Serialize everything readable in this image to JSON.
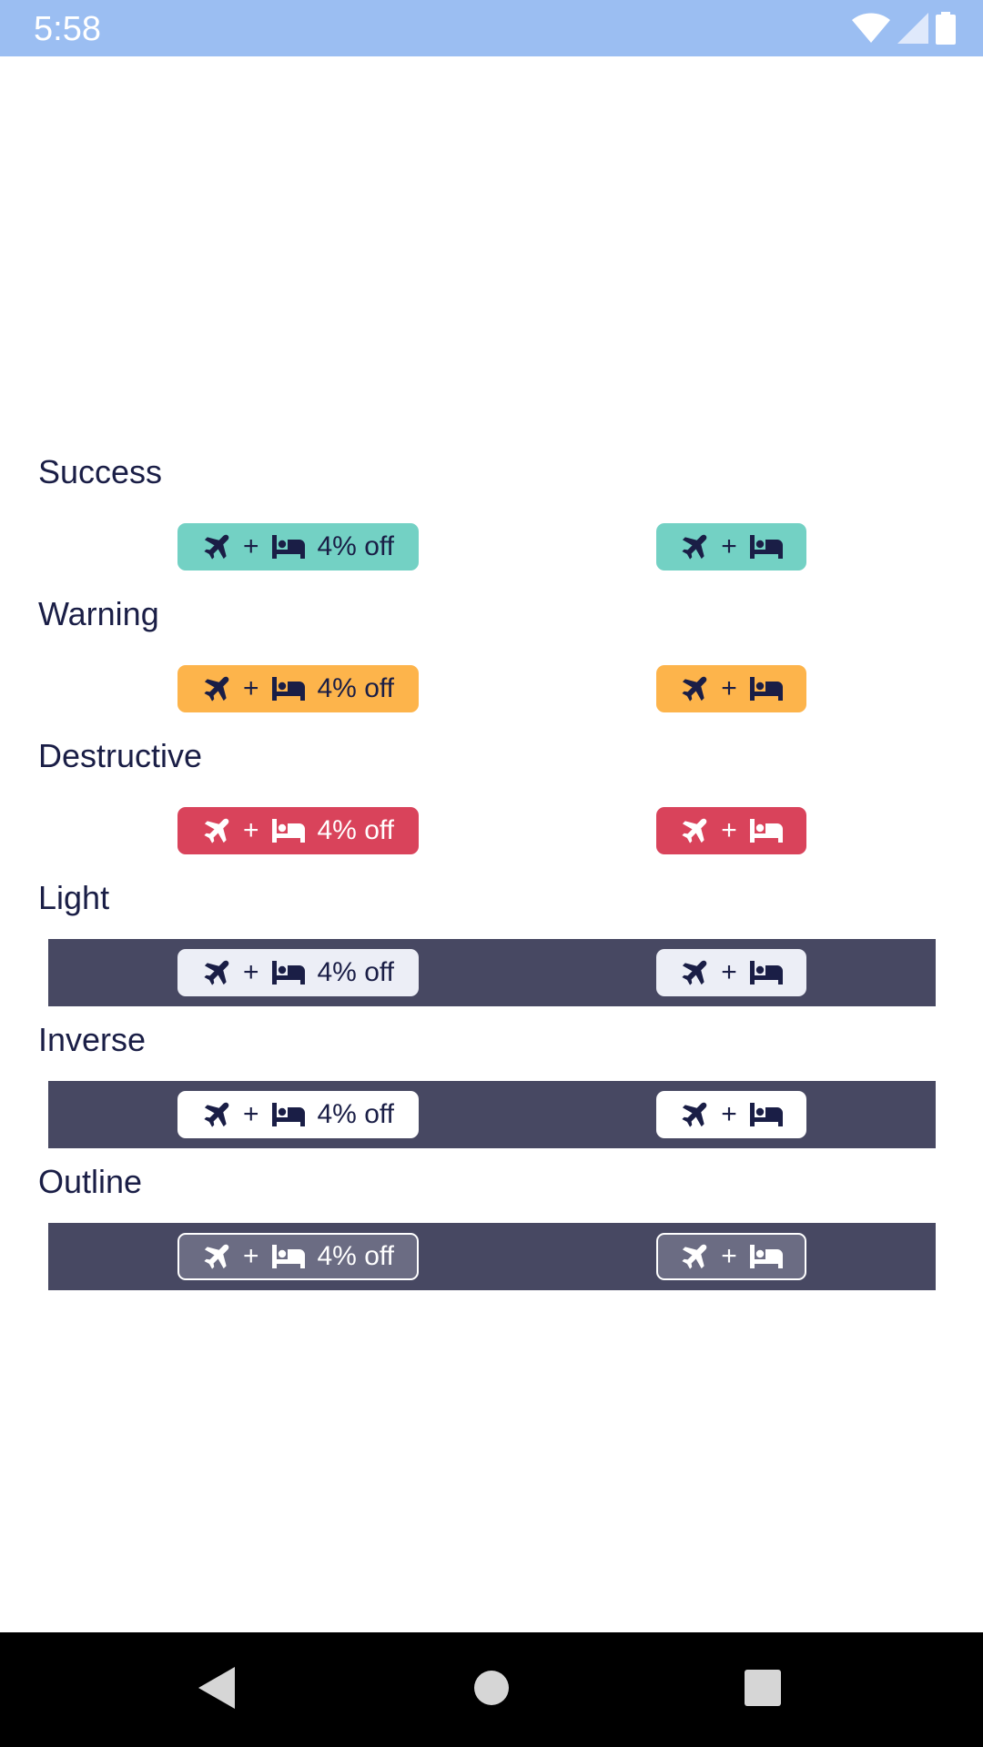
{
  "status_bar": {
    "time": "5:58",
    "bg_color": "#9bbef2",
    "icons": [
      "wifi-icon",
      "signal-icon",
      "battery-icon"
    ]
  },
  "badge_content": {
    "flight_icon": "airplane-icon",
    "plus": "+",
    "hotel_icon": "bed-icon",
    "discount": "4% off"
  },
  "sections": [
    {
      "label": "Success",
      "bg": "#73d1c4",
      "fg": "#1a1e46",
      "dark_row": false
    },
    {
      "label": "Warning",
      "bg": "#fdb44b",
      "fg": "#1a1e46",
      "dark_row": false
    },
    {
      "label": "Destructive",
      "bg": "#d9435b",
      "fg": "#ffffff",
      "dark_row": false
    },
    {
      "label": "Light",
      "bg": "#eceef6",
      "fg": "#1a1e46",
      "dark_row": true
    },
    {
      "label": "Inverse",
      "bg": "#ffffff",
      "fg": "#1a1e46",
      "dark_row": true
    },
    {
      "label": "Outline",
      "bg": "#6b6c83",
      "fg": "#ffffff",
      "dark_row": true
    }
  ],
  "dark_row_color": "#474862",
  "nav_bar": {
    "buttons": [
      "back-icon",
      "home-icon",
      "recents-icon"
    ]
  }
}
